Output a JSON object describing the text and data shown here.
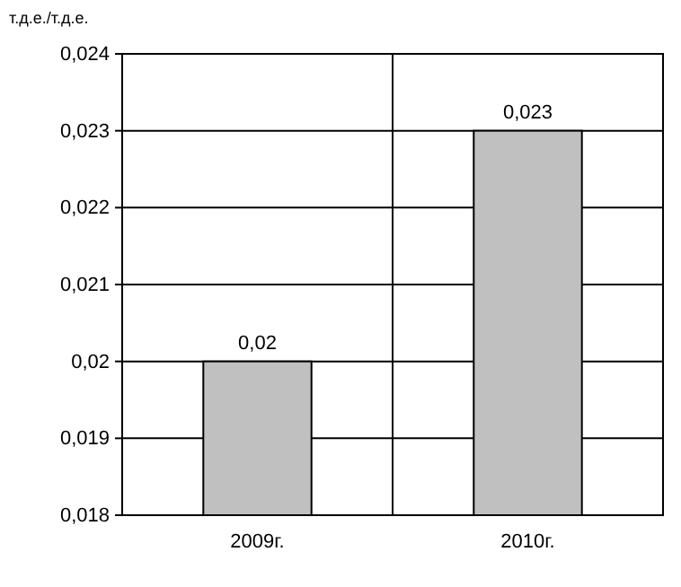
{
  "chart_data": {
    "type": "bar",
    "ylabel": "т.д.е./т.д.е.",
    "categories": [
      "2009г.",
      "2010г."
    ],
    "values": [
      0.02,
      0.023
    ],
    "color": "#c0c0c0",
    "value_labels": [
      "0,02",
      "0,023"
    ],
    "ylim": [
      0.018,
      0.024
    ],
    "yticks": [
      {
        "value": 0.018,
        "label": "0,018"
      },
      {
        "value": 0.019,
        "label": "0,019"
      },
      {
        "value": 0.02,
        "label": "0,02"
      },
      {
        "value": 0.021,
        "label": "0,021"
      },
      {
        "value": 0.022,
        "label": "0,022"
      },
      {
        "value": 0.023,
        "label": "0,023"
      },
      {
        "value": 0.024,
        "label": "0,024"
      }
    ],
    "grid": true
  }
}
